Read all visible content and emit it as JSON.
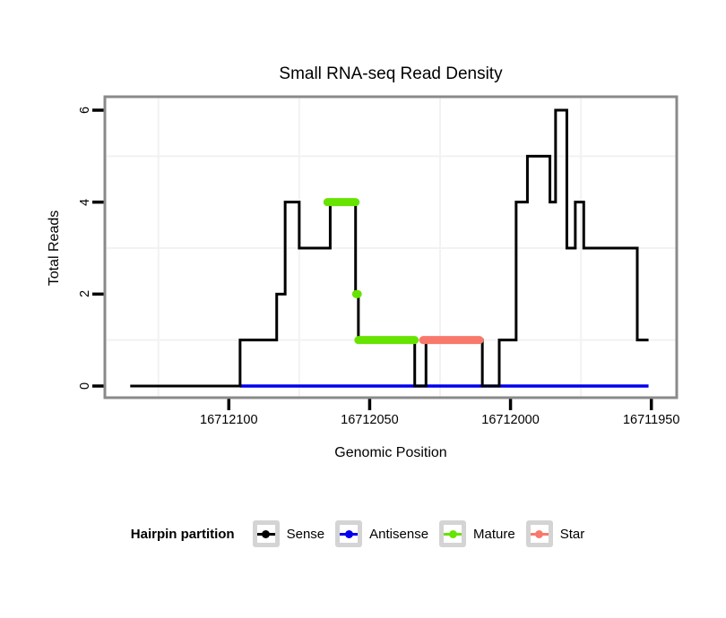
{
  "chart_data": {
    "type": "line",
    "subtype": "step",
    "title": "Small RNA-seq Read Density",
    "xlabel": "Genomic Position",
    "ylabel": "Total Reads",
    "x_axis_reversed": true,
    "x_domain": [
      16712144,
      16711941
    ],
    "ylim": [
      0,
      6.3
    ],
    "grid": "minor-only",
    "x_ticks": [
      {
        "pos": 16712100,
        "label": "16712100"
      },
      {
        "pos": 16712050,
        "label": "16712050"
      },
      {
        "pos": 16712000,
        "label": "16712000"
      },
      {
        "pos": 16711950,
        "label": "16711950"
      }
    ],
    "y_ticks": [
      {
        "value": 0,
        "label": "0"
      },
      {
        "value": 2,
        "label": "2"
      },
      {
        "value": 4,
        "label": "4"
      },
      {
        "value": 6,
        "label": "6"
      }
    ],
    "x_minor_grid": [
      16712125,
      16712075,
      16712025,
      16711975
    ],
    "y_minor_grid": [
      1,
      3,
      5
    ],
    "series": [
      {
        "name": "Antisense",
        "color": "#0000EE",
        "role": "line",
        "stroke_width": 3.5,
        "steps": [
          {
            "from": 16712096,
            "to": 16711951,
            "reads": 0
          }
        ]
      },
      {
        "name": "Sense",
        "color": "#000000",
        "role": "line",
        "stroke_width": 3,
        "steps": [
          {
            "from": 16712135,
            "to": 16712096,
            "reads": 0
          },
          {
            "from": 16712096,
            "to": 16712083,
            "reads": 1
          },
          {
            "from": 16712083,
            "to": 16712080,
            "reads": 2
          },
          {
            "from": 16712080,
            "to": 16712075,
            "reads": 4
          },
          {
            "from": 16712075,
            "to": 16712064,
            "reads": 3
          },
          {
            "from": 16712064,
            "to": 16712055,
            "reads": 4
          },
          {
            "from": 16712055,
            "to": 16712054,
            "reads": 2
          },
          {
            "from": 16712054,
            "to": 16712034,
            "reads": 1
          },
          {
            "from": 16712034,
            "to": 16712030,
            "reads": 0
          },
          {
            "from": 16712030,
            "to": 16712010,
            "reads": 1
          },
          {
            "from": 16712010,
            "to": 16712004,
            "reads": 0
          },
          {
            "from": 16712004,
            "to": 16711998,
            "reads": 1
          },
          {
            "from": 16711998,
            "to": 16711994,
            "reads": 4
          },
          {
            "from": 16711994,
            "to": 16711986,
            "reads": 5
          },
          {
            "from": 16711986,
            "to": 16711984,
            "reads": 4
          },
          {
            "from": 16711984,
            "to": 16711980,
            "reads": 6
          },
          {
            "from": 16711980,
            "to": 16711977,
            "reads": 3
          },
          {
            "from": 16711977,
            "to": 16711974,
            "reads": 4
          },
          {
            "from": 16711974,
            "to": 16711955,
            "reads": 3
          },
          {
            "from": 16711955,
            "to": 16711951,
            "reads": 1
          }
        ]
      },
      {
        "name": "Mature",
        "color": "#67E300",
        "role": "overlay",
        "stroke_width": 9,
        "steps": [
          {
            "from": 16712065,
            "to": 16712055,
            "reads": 4
          },
          {
            "from": 16712054.8,
            "to": 16712054.2,
            "reads": 2
          },
          {
            "from": 16712054,
            "to": 16712034,
            "reads": 1
          }
        ]
      },
      {
        "name": "Star",
        "color": "#F8796B",
        "role": "overlay",
        "stroke_width": 9,
        "steps": [
          {
            "from": 16712031,
            "to": 16712011,
            "reads": 1
          }
        ]
      }
    ],
    "legend": {
      "title": "Hairpin partition",
      "position": "bottom",
      "entries": [
        {
          "label": "Sense",
          "color": "#000000"
        },
        {
          "label": "Antisense",
          "color": "#0000EE"
        },
        {
          "label": "Mature",
          "color": "#67E300"
        },
        {
          "label": "Star",
          "color": "#F8796B"
        }
      ]
    },
    "style": {
      "panel_background": "#FFFFFF",
      "panel_border": "#8A8A8A",
      "tick_color": "#000000",
      "minor_grid_color": "#F2F2F2",
      "legend_key_border": "#D4D4D4"
    }
  }
}
